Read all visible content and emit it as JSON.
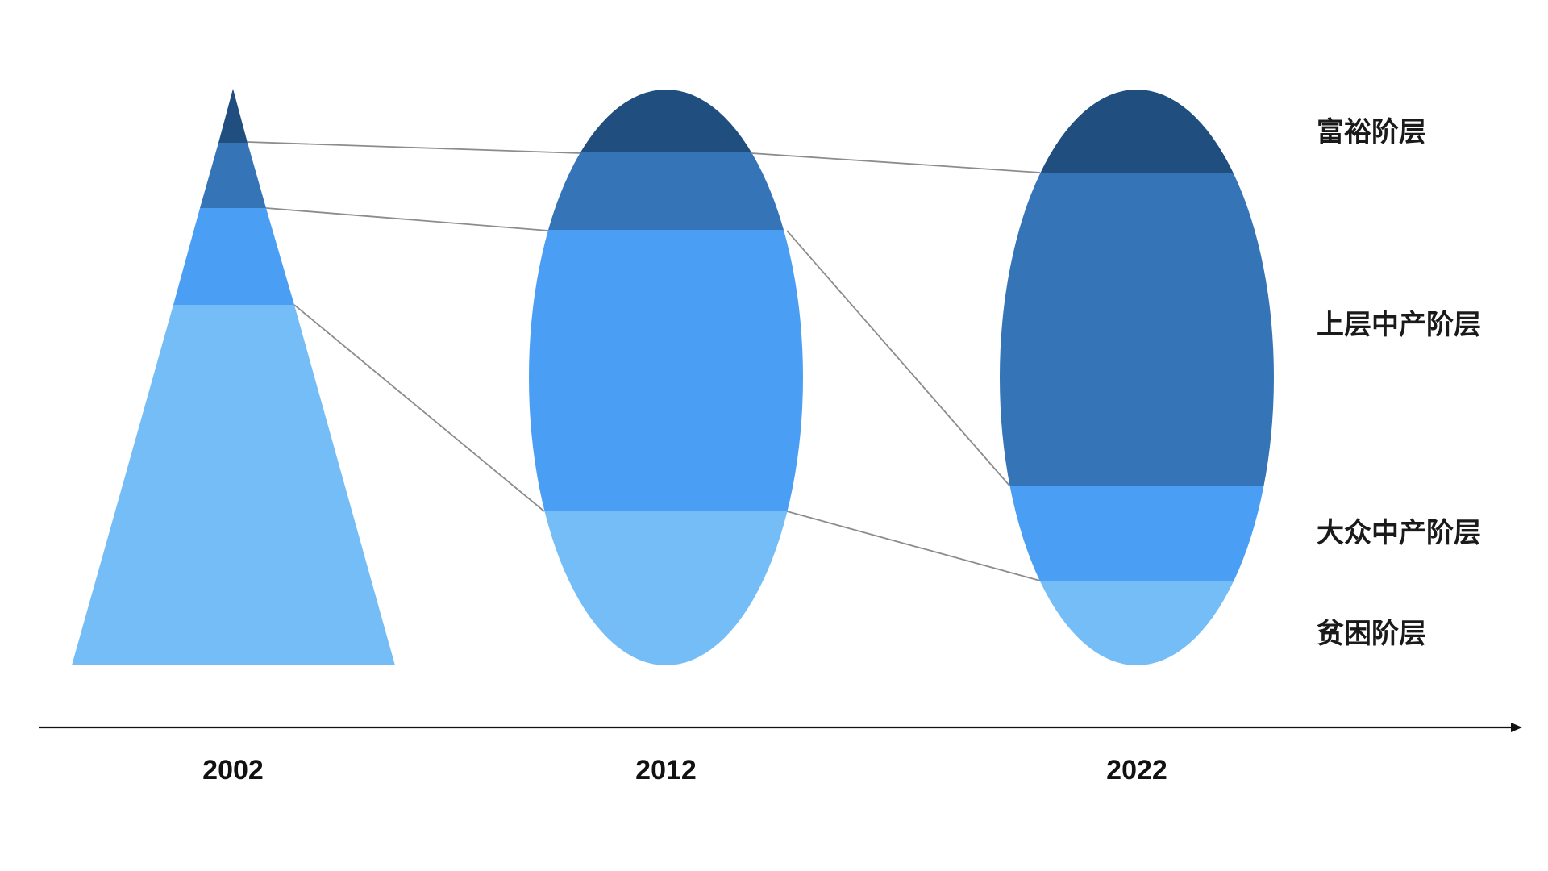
{
  "colors": {
    "wealthy": "#1f4e7f",
    "upper_middle": "#3574b6",
    "mass_middle": "#4a9ff5",
    "poor": "#74bdf7",
    "axis": "#111111",
    "connector": "#8c8c8c"
  },
  "tiers": [
    {
      "key": "wealthy",
      "label": "富裕阶层"
    },
    {
      "key": "upper_middle",
      "label": "上层中产阶层"
    },
    {
      "key": "mass_middle",
      "label": "大众中产阶层"
    },
    {
      "key": "poor",
      "label": "贫困阶层"
    }
  ],
  "years": [
    {
      "label": "2002",
      "shape": "triangle"
    },
    {
      "label": "2012",
      "shape": "ellipse"
    },
    {
      "label": "2022",
      "shape": "ellipse"
    }
  ]
}
